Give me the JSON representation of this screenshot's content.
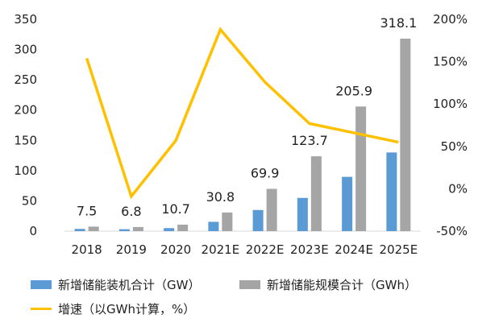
{
  "chart_data": {
    "type": "bar+line",
    "categories": [
      "2018",
      "2019",
      "2020",
      "2021E",
      "2022E",
      "2023E",
      "2024E",
      "2025E"
    ],
    "series": [
      {
        "name": "新增储能装机合计（GW）",
        "type": "bar",
        "axis": "left",
        "color": "#5b9bd5",
        "values": [
          3.7,
          3.2,
          5.0,
          15.4,
          34.9,
          54.9,
          89.7,
          130.0
        ]
      },
      {
        "name": "新增储能规模合计（GWh）",
        "type": "bar",
        "axis": "left",
        "color": "#a5a5a5",
        "values": [
          7.5,
          6.8,
          10.7,
          30.8,
          69.9,
          123.7,
          205.9,
          318.1
        ],
        "labels": [
          "7.5",
          "6.8",
          "10.7",
          "30.8",
          "69.9",
          "123.7",
          "205.9",
          "318.1"
        ]
      },
      {
        "name": "增速（以GWh计算，%）",
        "type": "line",
        "axis": "right",
        "color": "#ffc000",
        "values": [
          154,
          -9,
          57,
          188,
          126,
          77,
          66,
          55
        ]
      }
    ],
    "y_left": {
      "min": 0,
      "max": 350,
      "ticks": [
        "0",
        "50",
        "100",
        "150",
        "200",
        "250",
        "300",
        "350"
      ]
    },
    "y_right": {
      "min": -50,
      "max": 200,
      "ticks": [
        "-50%",
        "0%",
        "50%",
        "100%",
        "150%",
        "200%"
      ]
    },
    "grid": false,
    "legend_position": "bottom"
  }
}
